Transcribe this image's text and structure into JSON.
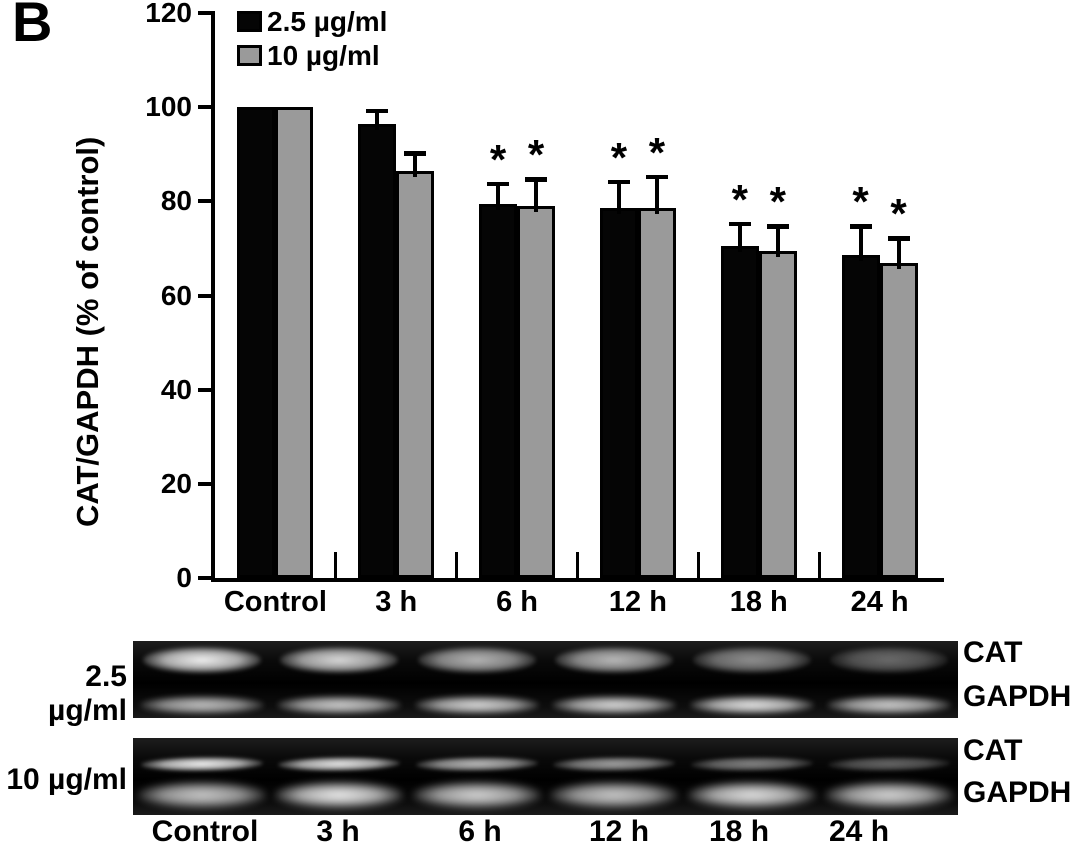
{
  "panel_label": "B",
  "chart_data": {
    "type": "bar",
    "title": "",
    "xlabel": "",
    "ylabel": "CAT/GAPDH (% of control)",
    "ylim": [
      0,
      120
    ],
    "yticks": [
      0,
      20,
      40,
      60,
      80,
      100,
      120
    ],
    "grid": false,
    "legend_position": "top-left-inside",
    "significance_marker": "*",
    "categories": [
      "Control",
      "3 h",
      "6 h",
      "12 h",
      "18 h",
      "24 h"
    ],
    "series": [
      {
        "name": "2.5 µg/ml",
        "color": "#050505",
        "values": [
          100,
          96.5,
          79.5,
          78.5,
          70.5,
          68.5
        ],
        "errors": [
          0,
          2.5,
          4,
          5.5,
          4.5,
          6
        ],
        "significant": [
          false,
          false,
          true,
          true,
          true,
          true
        ]
      },
      {
        "name": "10 µg/ml",
        "color": "#9a9a9a",
        "values": [
          100,
          86.5,
          79,
          78.5,
          69.5,
          67
        ],
        "errors": [
          0,
          3.5,
          5.5,
          6.5,
          5,
          5
        ],
        "significant": [
          false,
          false,
          true,
          true,
          true,
          true
        ]
      }
    ]
  },
  "gel_panel": {
    "lane_labels": [
      "Control",
      "3 h",
      "6 h",
      "12 h",
      "18 h",
      "24 h"
    ],
    "strips": [
      {
        "dose_label": "2.5 µg/ml",
        "rows": [
          {
            "label": "CAT",
            "intensities": [
              0.95,
              0.85,
              0.7,
              0.72,
              0.55,
              0.4
            ]
          },
          {
            "label": "GAPDH",
            "intensities": [
              0.75,
              0.8,
              0.85,
              0.85,
              0.9,
              0.8
            ]
          }
        ]
      },
      {
        "dose_label": "10 µg/ml",
        "rows": [
          {
            "label": "CAT",
            "intensities": [
              0.95,
              0.9,
              0.72,
              0.62,
              0.5,
              0.38
            ]
          },
          {
            "label": "GAPDH",
            "intensities": [
              0.8,
              0.95,
              0.85,
              0.8,
              0.9,
              0.85
            ]
          }
        ]
      }
    ]
  }
}
